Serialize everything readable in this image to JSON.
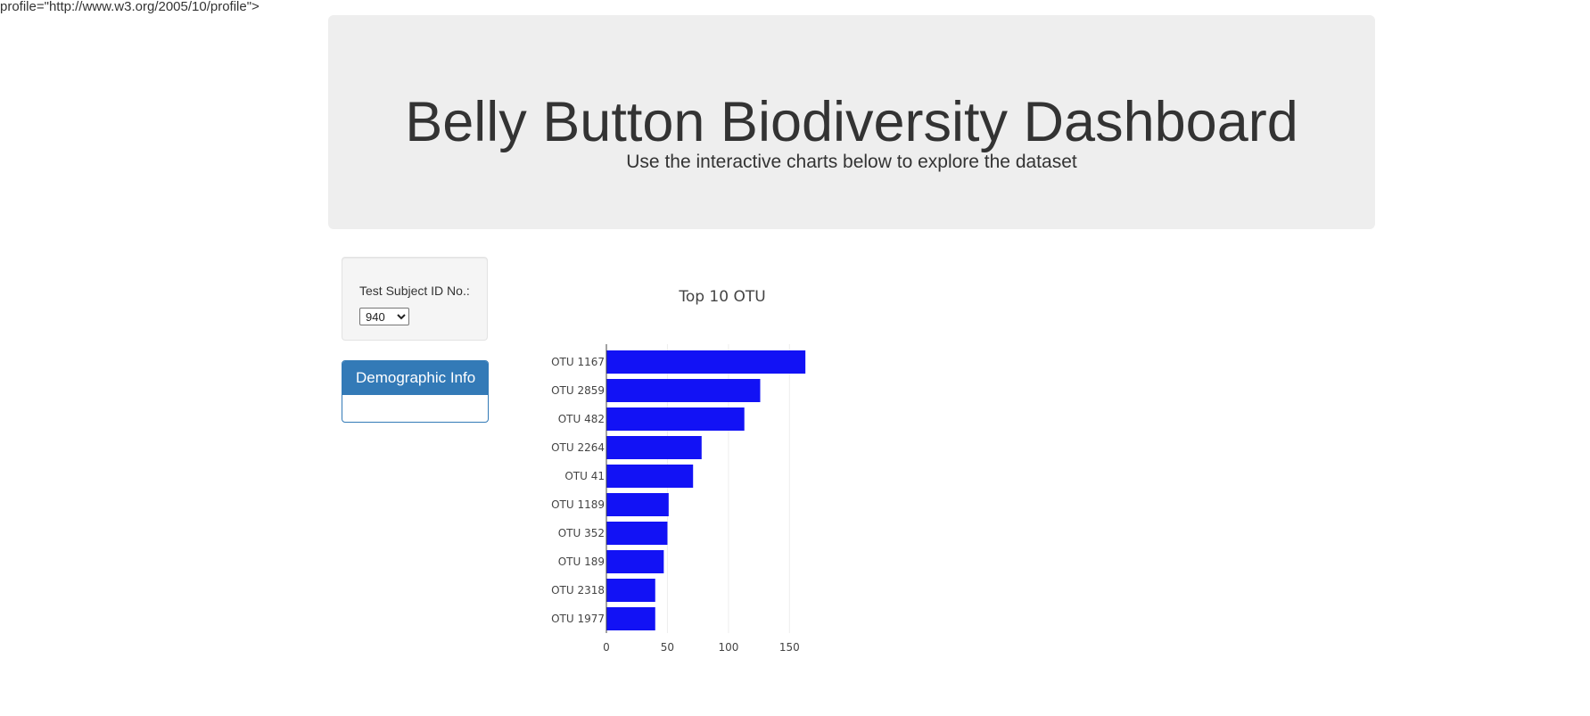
{
  "page": {
    "stray_text": "profile=\"http://www.w3.org/2005/10/profile\">"
  },
  "header": {
    "title": "Belly Button Biodiversity Dashboard",
    "subtitle": "Use the interactive charts below to explore the dataset"
  },
  "selector": {
    "label": "Test Subject ID No.:",
    "selected_value": "940"
  },
  "demographic_panel": {
    "title": "Demographic Info"
  },
  "colors": {
    "bar": "#1212f5",
    "panel": "#337ab7",
    "grid": "#eeeeee"
  },
  "chart_data": {
    "type": "bar",
    "orientation": "horizontal",
    "title": "Top 10 OTU",
    "categories": [
      "OTU 1167",
      "OTU 2859",
      "OTU 482",
      "OTU 2264",
      "OTU 41",
      "OTU 1189",
      "OTU 352",
      "OTU 189",
      "OTU 2318",
      "OTU 1977"
    ],
    "values": [
      163,
      126,
      113,
      78,
      71,
      51,
      50,
      47,
      40,
      40
    ],
    "xlim": [
      0,
      168
    ],
    "xticks": [
      0,
      50,
      100,
      150
    ],
    "xlabel": "",
    "ylabel": "",
    "grid": true
  }
}
